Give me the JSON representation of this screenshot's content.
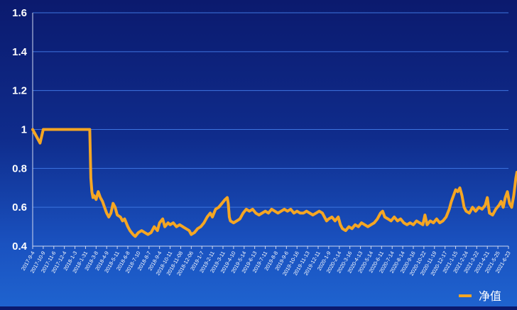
{
  "chart_data": {
    "type": "line",
    "title": "",
    "xlabel": "",
    "ylabel": "",
    "ylim": [
      0.4,
      1.6
    ],
    "yticks": [
      0.4,
      0.6,
      0.8,
      1,
      1.2,
      1.4,
      1.6
    ],
    "ytick_labels": [
      "0.4",
      "0.6",
      "0.8",
      "1",
      "1.2",
      "1.4",
      "1.6"
    ],
    "grid": true,
    "legend_position": "bottom-right",
    "x_tick_labels": [
      "2017-9-4",
      "2017-10-9",
      "2017-11-6",
      "2017-12-4",
      "2018-1-3",
      "2018-1-31",
      "2018-3-8",
      "2018-4-9",
      "2018-5-11",
      "2018-6-8",
      "2018-7-10",
      "2018-8-7",
      "2018-9-4",
      "2018-10-11",
      "2018-11-08",
      "2018-12-06",
      "2019-1-7",
      "2019-2-11",
      "2019-3-11",
      "2019-4-10",
      "2019-5-14",
      "2019-6-13",
      "2019-7-11",
      "2019-8-8",
      "2019-9-6",
      "2019-10-16",
      "2019-11-13",
      "2019-12-11",
      "2020-1-9",
      "2020-2-14",
      "2020-3-16",
      "2020-4-13",
      "2020-5-14",
      "2020-6-11",
      "2020-7-14",
      "2020-8-14",
      "2020-9-16",
      "2020-10-22",
      "2020-11-19",
      "2020-12-17",
      "2021-1-15",
      "2021-2-24",
      "2021-3-22",
      "2021-4-21",
      "2021-5-25",
      "2021-6-23"
    ],
    "series": [
      {
        "name": "净值",
        "color": "#f5a623",
        "points": [
          [
            0,
            1.0
          ],
          [
            0.4,
            0.96
          ],
          [
            0.7,
            0.93
          ],
          [
            1.0,
            1.0
          ],
          [
            2,
            1.0
          ],
          [
            3,
            1.0
          ],
          [
            4,
            1.0
          ],
          [
            5,
            1.0
          ],
          [
            5.4,
            1.0
          ],
          [
            5.5,
            0.75
          ],
          [
            5.6,
            0.68
          ],
          [
            5.7,
            0.65
          ],
          [
            5.8,
            0.66
          ],
          [
            6.0,
            0.64
          ],
          [
            6.2,
            0.68
          ],
          [
            6.4,
            0.65
          ],
          [
            6.6,
            0.63
          ],
          [
            6.8,
            0.6
          ],
          [
            7.0,
            0.57
          ],
          [
            7.2,
            0.55
          ],
          [
            7.4,
            0.57
          ],
          [
            7.6,
            0.62
          ],
          [
            7.8,
            0.6
          ],
          [
            8.0,
            0.56
          ],
          [
            8.3,
            0.55
          ],
          [
            8.5,
            0.53
          ],
          [
            8.7,
            0.54
          ],
          [
            9.0,
            0.5
          ],
          [
            9.2,
            0.48
          ],
          [
            9.5,
            0.46
          ],
          [
            9.7,
            0.45
          ],
          [
            10.0,
            0.47
          ],
          [
            10.3,
            0.48
          ],
          [
            10.6,
            0.47
          ],
          [
            10.9,
            0.46
          ],
          [
            11.2,
            0.47
          ],
          [
            11.5,
            0.5
          ],
          [
            11.8,
            0.48
          ],
          [
            12.0,
            0.52
          ],
          [
            12.3,
            0.54
          ],
          [
            12.5,
            0.5
          ],
          [
            12.8,
            0.52
          ],
          [
            13.0,
            0.51
          ],
          [
            13.3,
            0.52
          ],
          [
            13.6,
            0.5
          ],
          [
            13.9,
            0.51
          ],
          [
            14.2,
            0.5
          ],
          [
            14.5,
            0.49
          ],
          [
            14.8,
            0.48
          ],
          [
            15.0,
            0.46
          ],
          [
            15.3,
            0.47
          ],
          [
            15.6,
            0.49
          ],
          [
            15.9,
            0.5
          ],
          [
            16.2,
            0.52
          ],
          [
            16.5,
            0.55
          ],
          [
            16.8,
            0.57
          ],
          [
            17.0,
            0.55
          ],
          [
            17.3,
            0.59
          ],
          [
            17.6,
            0.6
          ],
          [
            17.9,
            0.62
          ],
          [
            18.2,
            0.64
          ],
          [
            18.4,
            0.65
          ],
          [
            18.5,
            0.62
          ],
          [
            18.6,
            0.55
          ],
          [
            18.7,
            0.53
          ],
          [
            19.0,
            0.52
          ],
          [
            19.3,
            0.53
          ],
          [
            19.6,
            0.54
          ],
          [
            19.9,
            0.57
          ],
          [
            20.2,
            0.59
          ],
          [
            20.5,
            0.58
          ],
          [
            20.8,
            0.59
          ],
          [
            21.1,
            0.57
          ],
          [
            21.4,
            0.56
          ],
          [
            21.7,
            0.57
          ],
          [
            22.0,
            0.58
          ],
          [
            22.3,
            0.57
          ],
          [
            22.6,
            0.59
          ],
          [
            22.9,
            0.58
          ],
          [
            23.2,
            0.57
          ],
          [
            23.5,
            0.58
          ],
          [
            23.8,
            0.59
          ],
          [
            24.1,
            0.58
          ],
          [
            24.4,
            0.59
          ],
          [
            24.7,
            0.57
          ],
          [
            25.0,
            0.58
          ],
          [
            25.3,
            0.57
          ],
          [
            25.6,
            0.57
          ],
          [
            25.9,
            0.58
          ],
          [
            26.2,
            0.57
          ],
          [
            26.5,
            0.56
          ],
          [
            26.8,
            0.57
          ],
          [
            27.1,
            0.58
          ],
          [
            27.4,
            0.57
          ],
          [
            27.6,
            0.55
          ],
          [
            27.8,
            0.53
          ],
          [
            28.0,
            0.54
          ],
          [
            28.3,
            0.55
          ],
          [
            28.6,
            0.53
          ],
          [
            28.9,
            0.55
          ],
          [
            29.1,
            0.51
          ],
          [
            29.3,
            0.49
          ],
          [
            29.6,
            0.48
          ],
          [
            29.9,
            0.5
          ],
          [
            30.2,
            0.49
          ],
          [
            30.5,
            0.51
          ],
          [
            30.8,
            0.5
          ],
          [
            31.1,
            0.52
          ],
          [
            31.4,
            0.51
          ],
          [
            31.7,
            0.5
          ],
          [
            32.0,
            0.51
          ],
          [
            32.3,
            0.52
          ],
          [
            32.6,
            0.54
          ],
          [
            32.9,
            0.57
          ],
          [
            33.1,
            0.58
          ],
          [
            33.3,
            0.55
          ],
          [
            33.6,
            0.54
          ],
          [
            33.9,
            0.53
          ],
          [
            34.2,
            0.55
          ],
          [
            34.5,
            0.53
          ],
          [
            34.8,
            0.54
          ],
          [
            35.1,
            0.52
          ],
          [
            35.4,
            0.51
          ],
          [
            35.7,
            0.52
          ],
          [
            36.0,
            0.51
          ],
          [
            36.3,
            0.53
          ],
          [
            36.6,
            0.52
          ],
          [
            36.9,
            0.51
          ],
          [
            37.1,
            0.56
          ],
          [
            37.3,
            0.51
          ],
          [
            37.6,
            0.53
          ],
          [
            37.9,
            0.52
          ],
          [
            38.2,
            0.54
          ],
          [
            38.5,
            0.52
          ],
          [
            38.8,
            0.53
          ],
          [
            39.1,
            0.55
          ],
          [
            39.4,
            0.59
          ],
          [
            39.6,
            0.63
          ],
          [
            39.8,
            0.66
          ],
          [
            40.0,
            0.69
          ],
          [
            40.2,
            0.68
          ],
          [
            40.4,
            0.7
          ],
          [
            40.6,
            0.66
          ],
          [
            40.8,
            0.6
          ],
          [
            41.0,
            0.58
          ],
          [
            41.3,
            0.57
          ],
          [
            41.6,
            0.6
          ],
          [
            41.9,
            0.58
          ],
          [
            42.2,
            0.6
          ],
          [
            42.5,
            0.59
          ],
          [
            42.8,
            0.61
          ],
          [
            43.0,
            0.65
          ],
          [
            43.2,
            0.57
          ],
          [
            43.5,
            0.56
          ],
          [
            43.8,
            0.59
          ],
          [
            44.1,
            0.61
          ],
          [
            44.3,
            0.63
          ],
          [
            44.5,
            0.6
          ],
          [
            44.7,
            0.65
          ],
          [
            44.9,
            0.68
          ],
          [
            45.1,
            0.62
          ],
          [
            45.3,
            0.6
          ],
          [
            45.5,
            0.66
          ],
          [
            45.7,
            0.75
          ],
          [
            45.8,
            0.78
          ],
          [
            45.9,
            0.76
          ],
          [
            46.0,
            0.73
          ]
        ]
      }
    ]
  }
}
